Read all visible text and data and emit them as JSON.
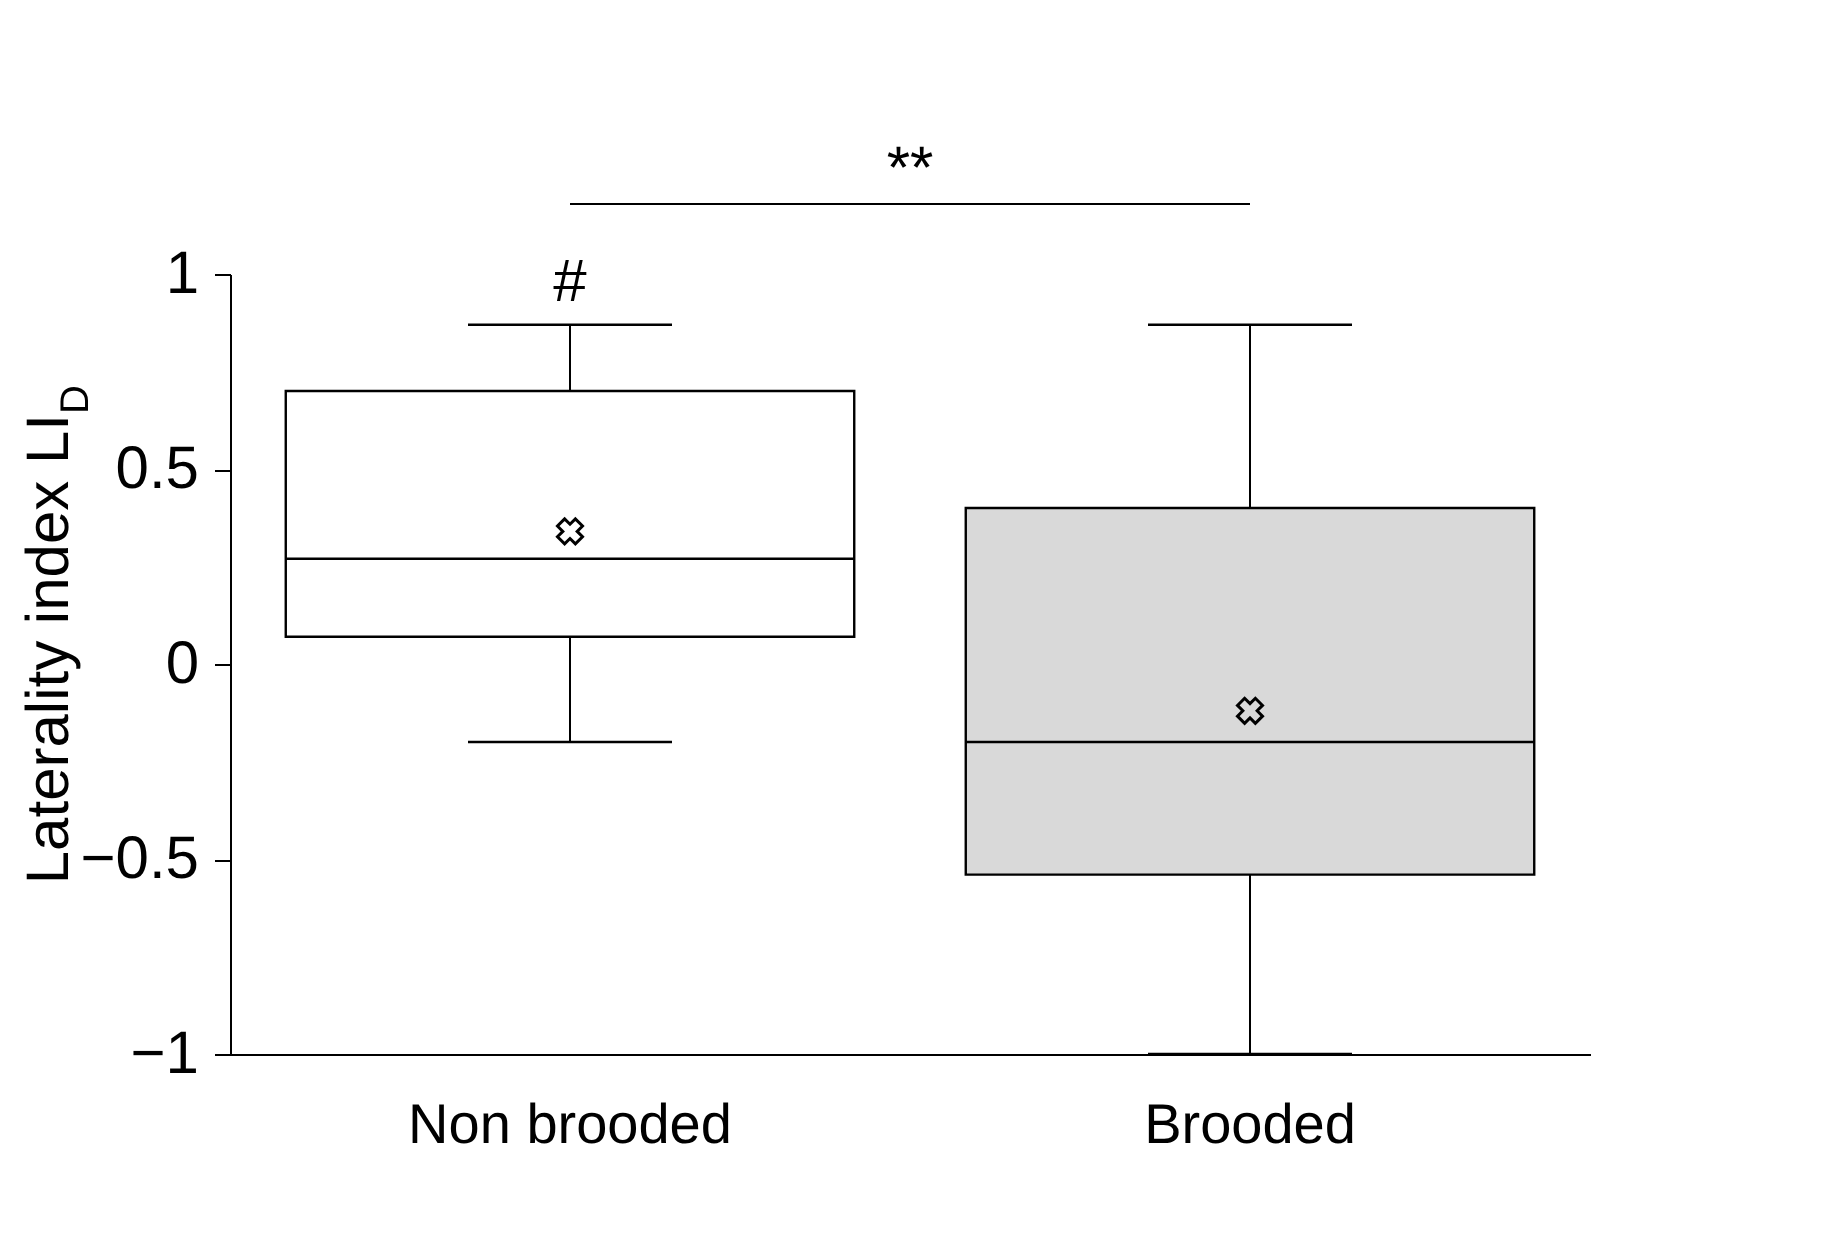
{
  "chart_data": {
    "type": "box",
    "ylabel": "Laterality index LI$_{D}$",
    "categories": [
      "Non brooded",
      "Brooded"
    ],
    "colors": [
      "#ffffff",
      "#d9d9d9"
    ],
    "boxes": [
      {
        "low": -0.2,
        "q1": 0.07,
        "median": 0.27,
        "q3": 0.7,
        "high": 0.87,
        "mean": 0.34
      },
      {
        "low": -1,
        "q1": -0.54,
        "median": -0.2,
        "q3": 0.4,
        "high": 0.87,
        "mean": -0.12
      }
    ],
    "ylim": [
      -1,
      1
    ],
    "yticks": [
      -1,
      -0.5,
      0,
      0.5,
      1
    ],
    "grid": false,
    "annotations": [
      "**",
      "#"
    ]
  }
}
